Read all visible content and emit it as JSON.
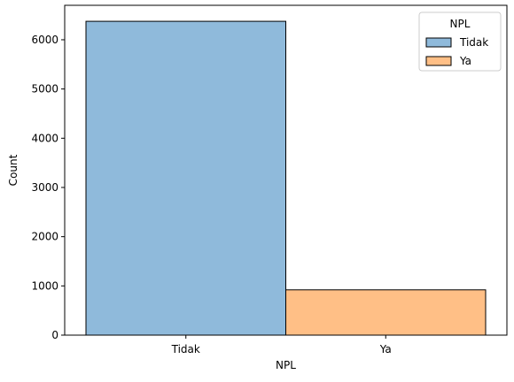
{
  "chart_data": {
    "type": "bar",
    "categories": [
      "Tidak",
      "Ya"
    ],
    "series": [
      {
        "name": "Tidak",
        "values": [
          6375,
          0
        ],
        "color": "#8fbadb"
      },
      {
        "name": "Ya",
        "values": [
          0,
          920
        ],
        "color": "#ffbf86"
      }
    ],
    "xlabel": "NPL",
    "ylabel": "Count",
    "ylim": [
      0,
      6700
    ],
    "yticks": [
      0,
      1000,
      2000,
      3000,
      4000,
      5000,
      6000
    ],
    "grid": false,
    "legend": {
      "title": "NPL",
      "placement": "top-right",
      "entries": [
        "Tidak",
        "Ya"
      ]
    }
  }
}
